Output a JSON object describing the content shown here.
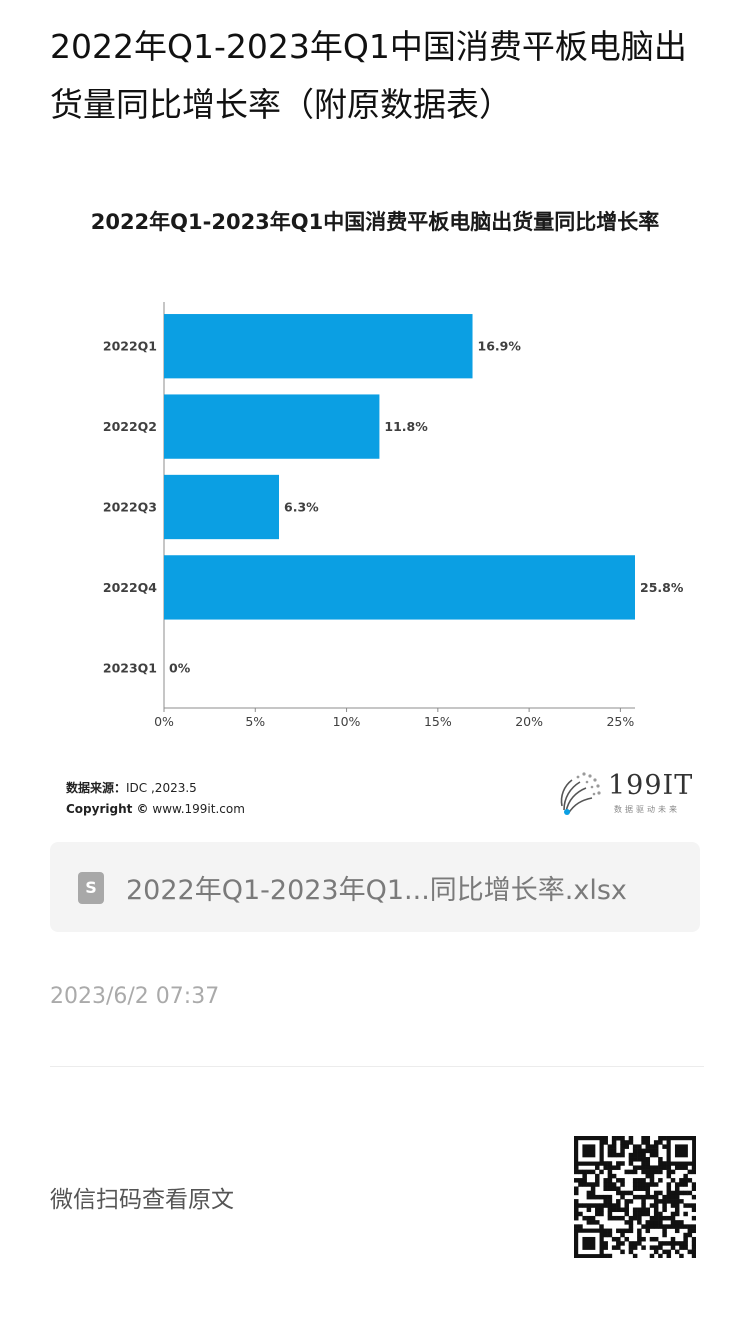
{
  "article": {
    "title": "2022年Q1-2023年Q1中国消费平板电脑出货量同比增长率（附原数据表）"
  },
  "chart_data": {
    "type": "bar",
    "orientation": "horizontal",
    "title": "2022年Q1-2023年Q1中国消费平板电脑出货量同比增长率",
    "categories": [
      "2022Q1",
      "2022Q2",
      "2022Q3",
      "2022Q4",
      "2023Q1"
    ],
    "values": [
      16.9,
      11.8,
      6.3,
      25.8,
      0
    ],
    "value_labels": [
      "16.9%",
      "11.8%",
      "6.3%",
      "25.8%",
      "0%"
    ],
    "xlim": [
      0,
      25.8
    ],
    "x_ticks": [
      0,
      5,
      10,
      15,
      20,
      25
    ],
    "x_tick_labels": [
      "0%",
      "5%",
      "10%",
      "15%",
      "20%",
      "25%"
    ],
    "bar_color": "#0b9fe3",
    "grid": false,
    "legend": "none"
  },
  "source": {
    "label": "数据来源：",
    "value": "IDC ,2023.5",
    "copyright_label": "Copyright ©",
    "copyright_value": "www.199it.com"
  },
  "logo": {
    "text": "199IT",
    "subtitle": "数据驱动未来",
    "icon": "dandelion-logo-icon"
  },
  "attachment": {
    "icon": "spreadsheet-file-icon",
    "icon_glyph": "S",
    "filename": "2022年Q1-2023年Q1...同比增长率.xlsx"
  },
  "meta": {
    "timestamp": "2023/6/2 07:37"
  },
  "footer": {
    "wechat_label": "微信扫码查看原文",
    "qr_icon": "qr-code-icon"
  }
}
